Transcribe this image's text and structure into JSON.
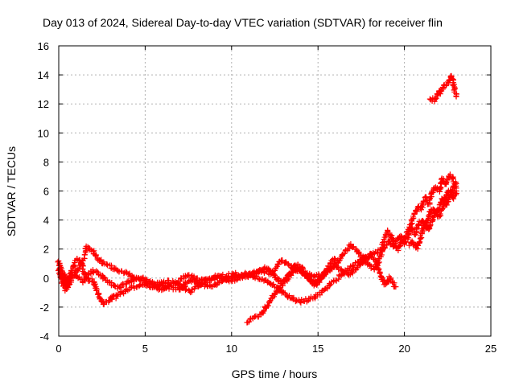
{
  "chart_data": {
    "type": "scatter",
    "title": "Day 013 of 2024, Sidereal Day-to-day VTEC variation (SDTVAR) for receiver flin",
    "xlabel": "GPS time / hours",
    "ylabel": "SDTVAR / TECUs",
    "xlim": [
      0,
      25
    ],
    "ylim": [
      -4,
      16
    ],
    "xticks": [
      0,
      5,
      10,
      15,
      20,
      25
    ],
    "yticks": [
      -4,
      -2,
      0,
      2,
      4,
      6,
      8,
      10,
      12,
      14,
      16
    ],
    "grid": true,
    "grid_style": "dotted",
    "marker": "+",
    "colors": {
      "series": "#ff0000",
      "grid": "#b0b0b0",
      "frame": "#000000"
    },
    "series": [
      {
        "tracks": [
          [
            [
              0.0,
              1.2
            ],
            [
              0.1,
              0.6
            ],
            [
              0.3,
              0.3
            ],
            [
              0.5,
              -0.5
            ],
            [
              0.7,
              0.5
            ],
            [
              0.9,
              0.9
            ],
            [
              1.1,
              1.4
            ],
            [
              1.3,
              1.0
            ],
            [
              1.5,
              0.4
            ],
            [
              1.7,
              -0.1
            ],
            [
              2.0,
              -0.2
            ],
            [
              2.2,
              -0.9
            ],
            [
              2.4,
              -1.5
            ],
            [
              2.6,
              -1.8
            ],
            [
              2.8,
              -1.6
            ],
            [
              3.0,
              -1.4
            ],
            [
              3.3,
              -1.3
            ],
            [
              3.6,
              -1.0
            ],
            [
              3.9,
              -0.9
            ],
            [
              4.2,
              -0.7
            ],
            [
              4.6,
              -0.5
            ],
            [
              5.0,
              -0.4
            ],
            [
              5.4,
              -0.6
            ],
            [
              5.8,
              -0.5
            ],
            [
              6.2,
              -0.6
            ],
            [
              6.6,
              -0.7
            ],
            [
              7.0,
              -0.8
            ],
            [
              7.3,
              -0.4
            ],
            [
              7.6,
              -0.2
            ],
            [
              8.0,
              -0.3
            ],
            [
              8.4,
              -0.5
            ],
            [
              8.8,
              -0.6
            ],
            [
              9.2,
              -0.3
            ],
            [
              9.6,
              -0.2
            ],
            [
              10.0,
              0.0
            ],
            [
              10.4,
              0.2
            ],
            [
              10.8,
              0.2
            ],
            [
              11.2,
              0.1
            ],
            [
              11.6,
              0.0
            ],
            [
              12.0,
              -0.2
            ],
            [
              12.4,
              -0.5
            ],
            [
              12.8,
              -0.8
            ],
            [
              13.2,
              -1.2
            ],
            [
              13.6,
              -1.5
            ],
            [
              14.0,
              -1.6
            ],
            [
              14.4,
              -1.5
            ],
            [
              14.8,
              -1.3
            ],
            [
              15.2,
              -1.0
            ],
            [
              15.6,
              -0.5
            ],
            [
              16.0,
              -0.2
            ],
            [
              16.4,
              0.3
            ],
            [
              16.8,
              0.7
            ],
            [
              17.2,
              1.0
            ],
            [
              17.6,
              1.3
            ],
            [
              18.0,
              1.5
            ],
            [
              18.4,
              1.8
            ],
            [
              18.8,
              2.1
            ],
            [
              19.1,
              2.6
            ],
            [
              19.3,
              2.2
            ],
            [
              19.6,
              2.6
            ],
            [
              19.8,
              2.9
            ],
            [
              20.0,
              2.3
            ],
            [
              20.2,
              2.8
            ],
            [
              20.4,
              3.5
            ],
            [
              20.6,
              3.0
            ],
            [
              20.8,
              3.6
            ],
            [
              21.0,
              4.0
            ],
            [
              21.2,
              3.5
            ],
            [
              21.4,
              4.2
            ],
            [
              21.6,
              4.8
            ],
            [
              21.8,
              4.4
            ],
            [
              22.0,
              4.9
            ],
            [
              22.2,
              5.4
            ],
            [
              22.4,
              5.0
            ],
            [
              22.6,
              5.6
            ],
            [
              22.8,
              6.2
            ],
            [
              23.0,
              6.5
            ]
          ],
          [
            [
              0.0,
              0.9
            ],
            [
              0.2,
              0.1
            ],
            [
              0.4,
              -0.4
            ],
            [
              0.6,
              -0.1
            ],
            [
              0.8,
              0.4
            ],
            [
              1.0,
              0.5
            ],
            [
              1.2,
              0.7
            ],
            [
              1.4,
              1.2
            ],
            [
              1.5,
              1.7
            ],
            [
              1.6,
              2.2
            ],
            [
              1.8,
              2.0
            ],
            [
              2.0,
              1.8
            ],
            [
              2.2,
              1.5
            ],
            [
              2.4,
              1.2
            ],
            [
              2.6,
              1.0
            ],
            [
              2.8,
              0.9
            ],
            [
              3.0,
              0.8
            ],
            [
              3.3,
              0.6
            ],
            [
              3.6,
              0.5
            ],
            [
              4.0,
              0.3
            ],
            [
              4.4,
              0.0
            ],
            [
              4.8,
              -0.2
            ],
            [
              5.2,
              -0.3
            ],
            [
              5.6,
              -0.4
            ],
            [
              6.0,
              -0.3
            ],
            [
              6.4,
              -0.2
            ],
            [
              6.8,
              -0.4
            ],
            [
              7.2,
              0.1
            ],
            [
              7.5,
              0.2
            ],
            [
              7.8,
              0.0
            ],
            [
              8.2,
              -0.1
            ],
            [
              8.6,
              -0.2
            ],
            [
              9.0,
              0.0
            ],
            [
              9.4,
              0.1
            ],
            [
              9.8,
              0.2
            ],
            [
              10.2,
              0.3
            ],
            [
              10.6,
              0.0
            ],
            [
              11.0,
              0.2
            ],
            [
              11.4,
              0.4
            ],
            [
              11.8,
              0.5
            ],
            [
              12.2,
              0.3
            ],
            [
              12.6,
              0.8
            ],
            [
              12.9,
              1.2
            ],
            [
              13.2,
              1.0
            ],
            [
              13.6,
              0.7
            ],
            [
              14.0,
              0.5
            ],
            [
              14.4,
              0.3
            ],
            [
              14.8,
              0.1
            ],
            [
              15.2,
              0.2
            ],
            [
              15.6,
              0.5
            ],
            [
              16.0,
              0.9
            ],
            [
              16.3,
              1.4
            ],
            [
              16.6,
              1.9
            ],
            [
              16.9,
              2.3
            ],
            [
              17.1,
              2.1
            ],
            [
              17.4,
              1.7
            ],
            [
              17.7,
              1.2
            ],
            [
              18.0,
              0.8
            ],
            [
              18.3,
              0.6
            ],
            [
              18.6,
              1.5
            ],
            [
              18.8,
              2.5
            ],
            [
              19.0,
              3.2
            ],
            [
              19.2,
              3.0
            ],
            [
              19.4,
              2.4
            ],
            [
              19.6,
              2.0
            ],
            [
              19.9,
              2.5
            ],
            [
              20.2,
              3.2
            ],
            [
              20.5,
              4.2
            ],
            [
              20.8,
              5.0
            ],
            [
              21.0,
              4.8
            ],
            [
              21.2,
              5.6
            ],
            [
              21.4,
              5.1
            ],
            [
              21.6,
              5.9
            ],
            [
              21.8,
              6.3
            ],
            [
              22.0,
              6.0
            ],
            [
              22.2,
              6.8
            ],
            [
              22.4,
              6.4
            ],
            [
              22.6,
              7.1
            ],
            [
              22.8,
              6.9
            ],
            [
              23.0,
              6.2
            ]
          ],
          [
            [
              0.0,
              0.5
            ],
            [
              0.2,
              -0.3
            ],
            [
              0.4,
              -0.8
            ],
            [
              0.6,
              -0.4
            ],
            [
              0.8,
              0.1
            ],
            [
              1.0,
              0.2
            ],
            [
              1.2,
              0.0
            ],
            [
              1.4,
              -0.2
            ],
            [
              1.7,
              0.2
            ],
            [
              2.0,
              0.5
            ],
            [
              2.3,
              0.3
            ],
            [
              2.6,
              0.0
            ],
            [
              2.9,
              -0.3
            ],
            [
              3.2,
              -0.5
            ],
            [
              3.5,
              -0.7
            ],
            [
              3.8,
              -0.4
            ],
            [
              4.1,
              -0.2
            ],
            [
              4.4,
              -0.1
            ],
            [
              4.8,
              0.0
            ],
            [
              5.2,
              -0.2
            ],
            [
              5.6,
              -0.6
            ],
            [
              6.0,
              -0.8
            ],
            [
              6.4,
              -0.5
            ],
            [
              6.8,
              -0.3
            ],
            [
              7.2,
              -0.6
            ],
            [
              7.6,
              -0.9
            ],
            [
              8.0,
              -0.6
            ],
            [
              8.4,
              -0.2
            ],
            [
              8.8,
              0.0
            ],
            [
              9.2,
              0.2
            ],
            [
              9.6,
              0.0
            ],
            [
              10.0,
              -0.2
            ],
            [
              10.4,
              0.0
            ],
            [
              10.8,
              0.3
            ],
            [
              11.2,
              0.2
            ],
            [
              11.6,
              0.5
            ],
            [
              12.0,
              0.7
            ],
            [
              12.3,
              0.4
            ],
            [
              12.6,
              0.0
            ],
            [
              12.9,
              -0.3
            ],
            [
              13.2,
              -0.1
            ],
            [
              13.5,
              0.3
            ],
            [
              13.8,
              0.6
            ],
            [
              14.1,
              0.4
            ],
            [
              14.4,
              0.0
            ],
            [
              14.7,
              -0.4
            ],
            [
              15.0,
              -0.2
            ],
            [
              15.3,
              0.2
            ],
            [
              15.6,
              0.6
            ],
            [
              15.9,
              0.9
            ],
            [
              16.2,
              0.7
            ],
            [
              16.5,
              0.4
            ],
            [
              16.8,
              0.2
            ],
            [
              17.1,
              0.5
            ],
            [
              17.4,
              0.9
            ],
            [
              17.7,
              1.3
            ],
            [
              18.0,
              1.6
            ],
            [
              18.3,
              1.2
            ],
            [
              18.5,
              0.6
            ],
            [
              18.7,
              0.0
            ],
            [
              18.9,
              -0.5
            ],
            [
              19.1,
              0.0
            ],
            [
              19.3,
              -0.3
            ],
            [
              19.5,
              -0.6
            ]
          ],
          [
            [
              10.9,
              -3.0
            ],
            [
              11.2,
              -2.8
            ],
            [
              11.5,
              -2.6
            ],
            [
              11.8,
              -2.4
            ],
            [
              12.0,
              -2.0
            ],
            [
              12.2,
              -1.6
            ],
            [
              12.4,
              -1.3
            ],
            [
              12.6,
              -1.0
            ],
            [
              12.8,
              -0.6
            ],
            [
              13.0,
              -0.3
            ],
            [
              13.2,
              0.0
            ],
            [
              13.4,
              0.4
            ],
            [
              13.6,
              0.7
            ],
            [
              13.8,
              0.9
            ],
            [
              14.0,
              0.8
            ],
            [
              14.2,
              0.4
            ],
            [
              14.4,
              0.1
            ],
            [
              14.6,
              -0.2
            ],
            [
              14.8,
              -0.5
            ],
            [
              15.0,
              -0.3
            ],
            [
              15.2,
              0.0
            ],
            [
              15.4,
              0.4
            ],
            [
              15.6,
              0.8
            ],
            [
              15.8,
              1.1
            ],
            [
              16.0,
              1.3
            ]
          ],
          [
            [
              20.3,
              2.2
            ],
            [
              20.5,
              2.5
            ],
            [
              20.7,
              2.0
            ],
            [
              20.9,
              2.6
            ],
            [
              21.0,
              3.2
            ],
            [
              21.2,
              3.8
            ],
            [
              21.4,
              3.3
            ],
            [
              21.6,
              4.0
            ],
            [
              21.8,
              4.6
            ],
            [
              22.0,
              4.2
            ],
            [
              22.2,
              4.8
            ],
            [
              22.4,
              5.6
            ],
            [
              22.6,
              6.0
            ],
            [
              22.8,
              5.5
            ],
            [
              23.0,
              6.0
            ]
          ],
          [
            [
              21.5,
              12.4
            ],
            [
              21.7,
              12.2
            ],
            [
              21.9,
              12.6
            ],
            [
              22.0,
              13.0
            ],
            [
              22.1,
              12.8
            ],
            [
              22.3,
              13.2
            ],
            [
              22.5,
              13.4
            ],
            [
              22.6,
              13.6
            ],
            [
              22.7,
              14.0
            ],
            [
              22.8,
              13.6
            ],
            [
              22.9,
              13.0
            ],
            [
              23.0,
              12.5
            ]
          ]
        ]
      }
    ]
  }
}
